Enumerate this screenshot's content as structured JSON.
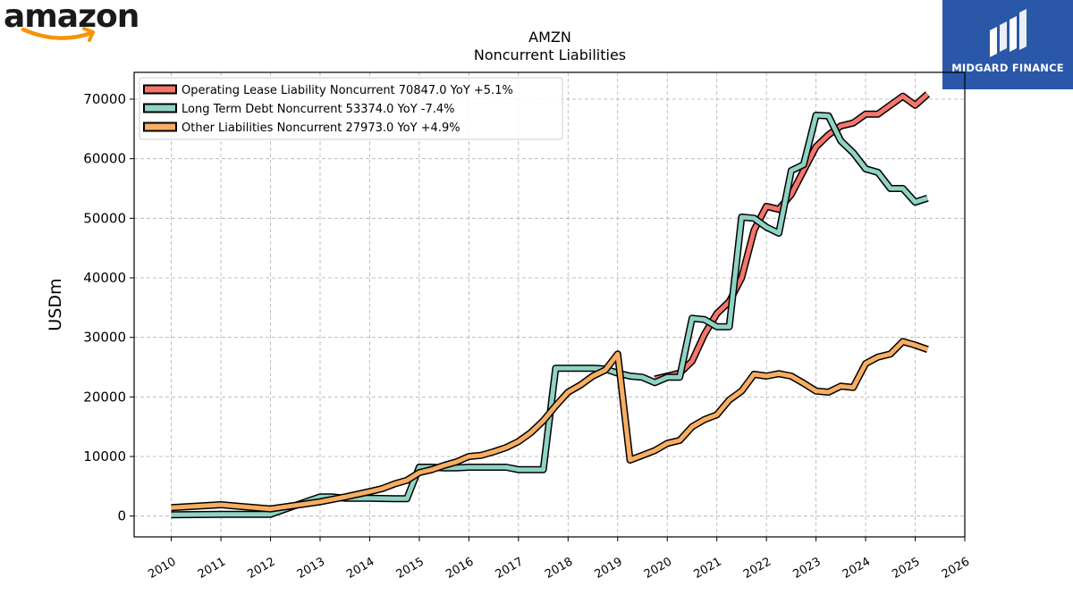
{
  "branding": {
    "company_logo_text": "amazon",
    "publisher_logo_text": "MIDGARD FINANCE",
    "publisher_bg": "#2a57a8",
    "amazon_smile_color": "#f79400"
  },
  "chart_data": {
    "type": "line",
    "title": "AMZN",
    "subtitle": "Noncurrent  Liabilities",
    "xlabel": "",
    "ylabel": "USDm",
    "xlim": [
      2009.25,
      2026.0
    ],
    "ylim": [
      -3500,
      74500
    ],
    "x_ticks": [
      "2010",
      "2011",
      "2012",
      "2013",
      "2014",
      "2015",
      "2016",
      "2017",
      "2018",
      "2019",
      "2020",
      "2021",
      "2022",
      "2023",
      "2024",
      "2025",
      "2026"
    ],
    "y_ticks": [
      "0",
      "10000",
      "20000",
      "30000",
      "40000",
      "50000",
      "60000",
      "70000"
    ],
    "grid": true,
    "legend_position": "top-left",
    "legend": [
      "Operating Lease Liability Noncurrent  70847.0 YoY +5.1%",
      "Long Term Debt Noncurrent  53374.0 YoY -7.4%",
      "Other Liabilities Noncurrent  27973.0 YoY +4.9%"
    ],
    "series": [
      {
        "name": "Operating Lease Liability Noncurrent",
        "color": "#f4766d",
        "points": [
          [
            2019.75,
            23000
          ],
          [
            2020.0,
            23500
          ],
          [
            2020.25,
            24000
          ],
          [
            2020.5,
            26000
          ],
          [
            2020.75,
            30500
          ],
          [
            2021.0,
            34000
          ],
          [
            2021.25,
            36000
          ],
          [
            2021.5,
            40000
          ],
          [
            2021.75,
            48000
          ],
          [
            2022.0,
            52000
          ],
          [
            2022.25,
            51500
          ],
          [
            2022.5,
            54000
          ],
          [
            2022.75,
            58000
          ],
          [
            2023.0,
            62000
          ],
          [
            2023.25,
            64000
          ],
          [
            2023.5,
            65500
          ],
          [
            2023.75,
            66000
          ],
          [
            2024.0,
            67500
          ],
          [
            2024.25,
            67500
          ],
          [
            2024.5,
            69000
          ],
          [
            2024.75,
            70500
          ],
          [
            2025.0,
            69000
          ],
          [
            2025.25,
            70847
          ]
        ]
      },
      {
        "name": "Long Term Debt Noncurrent",
        "color": "#8fd3c4",
        "points": [
          [
            2010.0,
            200
          ],
          [
            2011.0,
            300
          ],
          [
            2012.0,
            300
          ],
          [
            2012.75,
            2500
          ],
          [
            2013.0,
            3200
          ],
          [
            2013.25,
            3200
          ],
          [
            2013.5,
            3000
          ],
          [
            2013.75,
            3000
          ],
          [
            2014.0,
            3000
          ],
          [
            2014.5,
            2900
          ],
          [
            2014.75,
            2900
          ],
          [
            2015.0,
            8200
          ],
          [
            2015.25,
            8200
          ],
          [
            2015.5,
            8100
          ],
          [
            2015.75,
            8100
          ],
          [
            2016.0,
            8200
          ],
          [
            2016.5,
            8200
          ],
          [
            2016.75,
            8200
          ],
          [
            2017.0,
            7800
          ],
          [
            2017.5,
            7800
          ],
          [
            2017.75,
            24800
          ],
          [
            2018.0,
            24800
          ],
          [
            2018.5,
            24800
          ],
          [
            2018.75,
            24700
          ],
          [
            2019.0,
            24000
          ],
          [
            2019.25,
            23500
          ],
          [
            2019.5,
            23300
          ],
          [
            2019.75,
            22400
          ],
          [
            2020.0,
            23300
          ],
          [
            2020.25,
            23300
          ],
          [
            2020.5,
            33200
          ],
          [
            2020.75,
            33000
          ],
          [
            2021.0,
            31800
          ],
          [
            2021.25,
            31800
          ],
          [
            2021.5,
            50200
          ],
          [
            2021.75,
            50000
          ],
          [
            2022.0,
            48500
          ],
          [
            2022.25,
            47500
          ],
          [
            2022.5,
            58000
          ],
          [
            2022.75,
            59000
          ],
          [
            2023.0,
            67300
          ],
          [
            2023.25,
            67200
          ],
          [
            2023.5,
            63000
          ],
          [
            2023.75,
            61000
          ],
          [
            2024.0,
            58300
          ],
          [
            2024.25,
            57700
          ],
          [
            2024.5,
            55000
          ],
          [
            2024.75,
            55000
          ],
          [
            2025.0,
            52700
          ],
          [
            2025.25,
            53374
          ]
        ]
      },
      {
        "name": "Other Liabilities Noncurrent",
        "color": "#f7ae62",
        "points": [
          [
            2010.0,
            1400
          ],
          [
            2011.0,
            1900
          ],
          [
            2012.0,
            1200
          ],
          [
            2012.5,
            1800
          ],
          [
            2013.0,
            2400
          ],
          [
            2013.5,
            3200
          ],
          [
            2014.0,
            4100
          ],
          [
            2014.25,
            4600
          ],
          [
            2014.5,
            5400
          ],
          [
            2014.75,
            6000
          ],
          [
            2015.0,
            7300
          ],
          [
            2015.25,
            7800
          ],
          [
            2015.5,
            8500
          ],
          [
            2015.75,
            9100
          ],
          [
            2016.0,
            10000
          ],
          [
            2016.25,
            10200
          ],
          [
            2016.5,
            10800
          ],
          [
            2016.75,
            11500
          ],
          [
            2017.0,
            12500
          ],
          [
            2017.25,
            14000
          ],
          [
            2017.5,
            16000
          ],
          [
            2017.75,
            18500
          ],
          [
            2018.0,
            20800
          ],
          [
            2018.25,
            22000
          ],
          [
            2018.5,
            23500
          ],
          [
            2018.75,
            24500
          ],
          [
            2019.0,
            27200
          ],
          [
            2019.25,
            9400
          ],
          [
            2019.5,
            10200
          ],
          [
            2019.75,
            11000
          ],
          [
            2020.0,
            12200
          ],
          [
            2020.25,
            12700
          ],
          [
            2020.5,
            15000
          ],
          [
            2020.75,
            16200
          ],
          [
            2021.0,
            17000
          ],
          [
            2021.25,
            19500
          ],
          [
            2021.5,
            21000
          ],
          [
            2021.75,
            23800
          ],
          [
            2022.0,
            23500
          ],
          [
            2022.25,
            23900
          ],
          [
            2022.5,
            23500
          ],
          [
            2022.75,
            22300
          ],
          [
            2023.0,
            21000
          ],
          [
            2023.25,
            20800
          ],
          [
            2023.5,
            21800
          ],
          [
            2023.75,
            21600
          ],
          [
            2024.0,
            25600
          ],
          [
            2024.25,
            26700
          ],
          [
            2024.5,
            27200
          ],
          [
            2024.75,
            29300
          ],
          [
            2025.0,
            28700
          ],
          [
            2025.25,
            27973
          ]
        ]
      }
    ]
  }
}
